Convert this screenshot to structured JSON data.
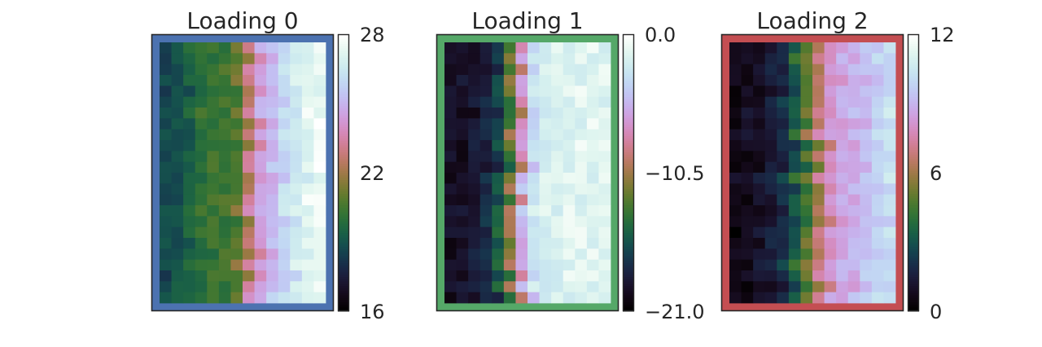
{
  "chart_data": [
    {
      "type": "heatmap",
      "title": "Loading 0",
      "frame_color": "#4c72b0",
      "colormap": "cubehelix",
      "vmin": 16,
      "vmax": 28,
      "colorbar_ticks": [
        {
          "value": 16,
          "label": "16"
        },
        {
          "value": 22,
          "label": "22"
        },
        {
          "value": 28,
          "label": "28"
        }
      ],
      "rows": 24,
      "cols": 14,
      "column_profile": [
        18.6,
        18.9,
        19.3,
        20.0,
        20.3,
        20.2,
        20.6,
        22.4,
        24.6,
        25.0,
        26.0,
        26.4,
        27.2,
        27.6
      ],
      "xticks": [],
      "yticks": []
    },
    {
      "type": "heatmap",
      "title": "Loading 1",
      "frame_color": "#55a868",
      "colormap": "cubehelix",
      "vmin": -21.0,
      "vmax": 0.0,
      "colorbar_ticks": [
        {
          "value": -21.0,
          "label": "−21.0"
        },
        {
          "value": -10.5,
          "label": "−10.5"
        },
        {
          "value": 0.0,
          "label": "0.0"
        }
      ],
      "rows": 24,
      "cols": 14,
      "column_profile": [
        -19.5,
        -19.4,
        -18.9,
        -18.2,
        -17.0,
        -13.0,
        -7.5,
        -3.0,
        -2.0,
        -1.6,
        -1.5,
        -1.4,
        -1.3,
        -1.5
      ],
      "xticks": [],
      "yticks": []
    },
    {
      "type": "heatmap",
      "title": "Loading 2",
      "frame_color": "#c44e52",
      "colormap": "cubehelix",
      "vmin": 0,
      "vmax": 12,
      "colorbar_ticks": [
        {
          "value": 0,
          "label": "0"
        },
        {
          "value": 6,
          "label": "6"
        },
        {
          "value": 12,
          "label": "12"
        }
      ],
      "rows": 24,
      "cols": 14,
      "column_profile": [
        0.5,
        0.8,
        1.0,
        1.4,
        1.8,
        3.0,
        4.8,
        6.5,
        8.2,
        8.6,
        8.9,
        9.2,
        9.8,
        10.3
      ],
      "xticks": [],
      "yticks": []
    }
  ]
}
